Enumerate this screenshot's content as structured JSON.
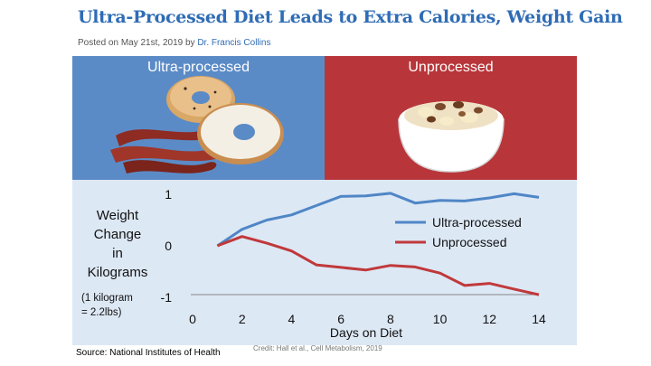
{
  "header": {
    "title": "Ultra-Processed Diet Leads to Extra Calories, Weight Gain",
    "posted": "Posted on May 21st, 2019 by ",
    "author": "Dr. Francis Collins"
  },
  "panels": {
    "left_label": "Ultra-processed",
    "right_label": "Unprocessed"
  },
  "colors": {
    "ultra": "#4f86c6",
    "unprocessed": "#c0393b",
    "left_panel": "#5b8bc6",
    "right_panel": "#b8363a",
    "chart_bg": "#dde8f5"
  },
  "ylabel_lines": [
    "Weight",
    "Change",
    "in",
    "Kilograms"
  ],
  "ylabel_note_lines": [
    "(1 kilogram",
    "= 2.2lbs)"
  ],
  "footer": {
    "source": "Source: National Institutes of Health",
    "credit": "Credit: Hall et al., Cell Metabolism, 2019"
  },
  "chart_data": {
    "type": "line",
    "title": "",
    "xlabel": "Days on Diet",
    "ylabel": "Weight Change in Kilograms",
    "xlim": [
      0,
      14
    ],
    "ylim": [
      -1,
      1
    ],
    "xticks": [
      0,
      2,
      4,
      6,
      8,
      10,
      12,
      14
    ],
    "yticks": [
      1,
      0,
      -1
    ],
    "legend": "top-right",
    "series": [
      {
        "name": "Ultra-processed",
        "x": [
          1,
          2,
          3,
          4,
          5,
          6,
          7,
          8,
          9,
          10,
          11,
          12,
          13,
          14
        ],
        "values": [
          0,
          0.32,
          0.5,
          0.6,
          0.78,
          0.96,
          0.97,
          1.02,
          0.83,
          0.88,
          0.87,
          0.93,
          1.01,
          0.94
        ]
      },
      {
        "name": "Unprocessed",
        "x": [
          1,
          2,
          3,
          4,
          5,
          6,
          7,
          8,
          9,
          10,
          11,
          12,
          13,
          14
        ],
        "values": [
          0,
          0.18,
          0.05,
          -0.1,
          -0.37,
          -0.42,
          -0.47,
          -0.38,
          -0.41,
          -0.53,
          -0.77,
          -0.73,
          -0.84,
          -0.95
        ]
      }
    ]
  }
}
